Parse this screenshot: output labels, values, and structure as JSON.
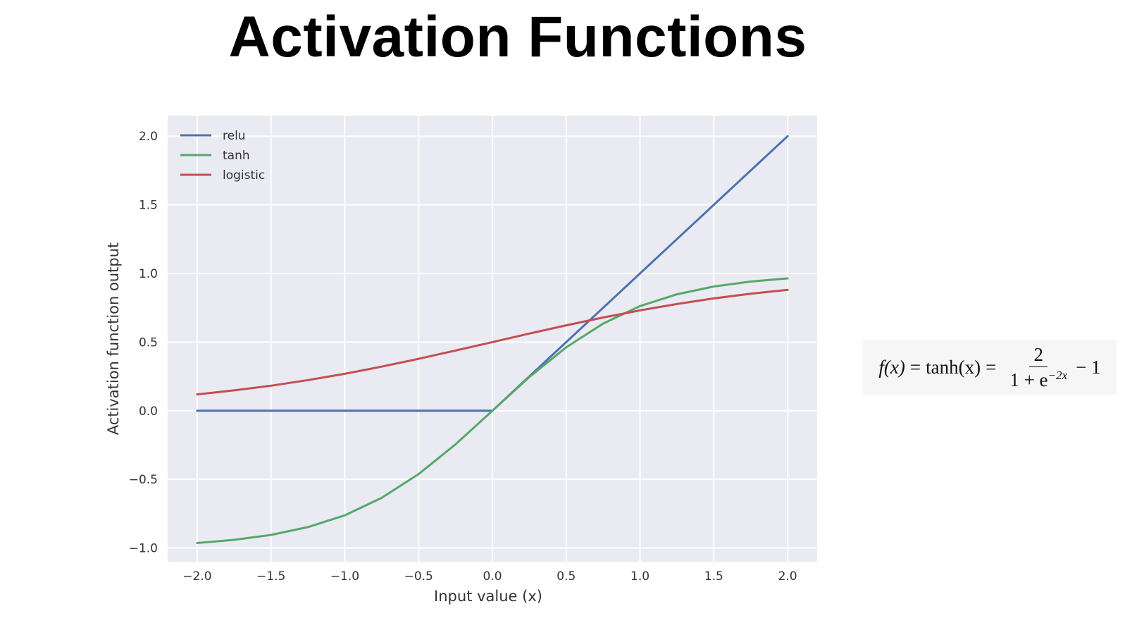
{
  "slide": {
    "title": "Activation Functions"
  },
  "formula": {
    "lhs": "f(x)",
    "eq1": "=",
    "mid": "tanh(x)",
    "eq2": "=",
    "numerator": "2",
    "denominator_base": "1 + e",
    "denominator_exp": "−2x",
    "tail": "− 1"
  },
  "colors": {
    "relu": "#4c72b0",
    "tanh": "#55a868",
    "logistic": "#c44e52",
    "plot_bg": "#eaeaf2",
    "grid": "#ffffff"
  },
  "chart_data": {
    "type": "line",
    "title": "",
    "xlabel": "Input value (x)",
    "ylabel": "Activation function output",
    "xlim": [
      -2.2,
      2.2
    ],
    "ylim": [
      -1.1,
      2.15
    ],
    "xticks": [
      -2.0,
      -1.5,
      -1.0,
      -0.5,
      0.0,
      0.5,
      1.0,
      1.5,
      2.0
    ],
    "yticks": [
      -1.0,
      -0.5,
      0.0,
      0.5,
      1.0,
      1.5,
      2.0
    ],
    "xtick_labels": [
      "−2.0",
      "−1.5",
      "−1.0",
      "−0.5",
      "0.0",
      "0.5",
      "1.0",
      "1.5",
      "2.0"
    ],
    "ytick_labels": [
      "−1.0",
      "−0.5",
      "0.0",
      "0.5",
      "1.0",
      "1.5",
      "2.0"
    ],
    "grid": true,
    "legend_position": "top-left",
    "x": [
      -2.0,
      -1.75,
      -1.5,
      -1.25,
      -1.0,
      -0.75,
      -0.5,
      -0.25,
      0.0,
      0.25,
      0.5,
      0.75,
      1.0,
      1.25,
      1.5,
      1.75,
      2.0
    ],
    "series": [
      {
        "name": "relu",
        "values": [
          0,
          0,
          0,
          0,
          0,
          0,
          0,
          0,
          0,
          0.25,
          0.5,
          0.75,
          1.0,
          1.25,
          1.5,
          1.75,
          2.0
        ]
      },
      {
        "name": "tanh",
        "values": [
          -0.964,
          -0.941,
          -0.905,
          -0.848,
          -0.762,
          -0.635,
          -0.462,
          -0.245,
          0.0,
          0.245,
          0.462,
          0.635,
          0.762,
          0.848,
          0.905,
          0.941,
          0.964
        ]
      },
      {
        "name": "logistic",
        "values": [
          0.119,
          0.148,
          0.182,
          0.223,
          0.269,
          0.321,
          0.378,
          0.438,
          0.5,
          0.562,
          0.622,
          0.679,
          0.731,
          0.777,
          0.818,
          0.852,
          0.881
        ]
      }
    ]
  }
}
